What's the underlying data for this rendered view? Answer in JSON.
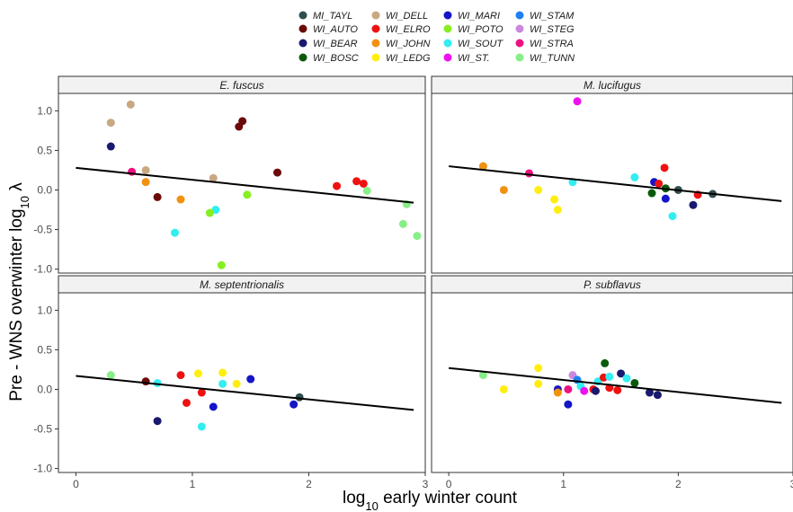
{
  "chart_data": {
    "type": "scatter",
    "xlabel": "log10 early winter count",
    "ylabel": "Pre - WNS overwinter log10 λ",
    "xlim": [
      -0.15,
      3.0
    ],
    "ylim": [
      -1.05,
      1.22
    ],
    "x_ticks": [
      0,
      1,
      2,
      3
    ],
    "y_ticks": [
      -1.0,
      -0.5,
      0.0,
      0.5,
      1.0
    ],
    "x_tick_labels": [
      "0",
      "1",
      "2",
      "3"
    ],
    "y_tick_labels": [
      "-1.0",
      "-0.5",
      "0.0",
      "0.5",
      "1.0"
    ],
    "grid": false,
    "legend_position": "top",
    "legend": [
      {
        "name": "MI_TAYL",
        "color": "#2f4f4f"
      },
      {
        "name": "WI_AUTO",
        "color": "#6b0a0a"
      },
      {
        "name": "WI_BEAR",
        "color": "#191970"
      },
      {
        "name": "WI_BOSC",
        "color": "#0b5a0b"
      },
      {
        "name": "WI_DELL",
        "color": "#c8a882"
      },
      {
        "name": "WI_ELRO",
        "color": "#ee1111"
      },
      {
        "name": "WI_JOHN",
        "color": "#f29110"
      },
      {
        "name": "WI_LEDG",
        "color": "#ffee10"
      },
      {
        "name": "WI_MARI",
        "color": "#1414c8"
      },
      {
        "name": "WI_POTO",
        "color": "#88ee22"
      },
      {
        "name": "WI_SOUT",
        "color": "#33eef0"
      },
      {
        "name": "WI_ST.",
        "color": "#ee11ee"
      },
      {
        "name": "WI_STAM",
        "color": "#1e80ee"
      },
      {
        "name": "WI_STEG",
        "color": "#cc88dd"
      },
      {
        "name": "WI_STRA",
        "color": "#ee1180"
      },
      {
        "name": "WI_TUNN",
        "color": "#88ee88"
      }
    ],
    "panels": [
      {
        "title": "E. fuscus",
        "fit_line": [
          [
            0,
            0.28
          ],
          [
            2.9,
            -0.16
          ]
        ],
        "points": [
          {
            "x": 0.3,
            "y": 0.85,
            "site": "WI_DELL"
          },
          {
            "x": 0.47,
            "y": 1.08,
            "site": "WI_DELL"
          },
          {
            "x": 0.3,
            "y": 0.55,
            "site": "WI_BEAR"
          },
          {
            "x": 0.6,
            "y": 0.25,
            "site": "WI_DELL"
          },
          {
            "x": 0.48,
            "y": 0.23,
            "site": "WI_STRA"
          },
          {
            "x": 0.6,
            "y": 0.1,
            "site": "WI_JOHN"
          },
          {
            "x": 0.7,
            "y": -0.09,
            "site": "WI_AUTO"
          },
          {
            "x": 0.9,
            "y": -0.12,
            "site": "WI_JOHN"
          },
          {
            "x": 0.85,
            "y": -0.54,
            "site": "WI_SOUT"
          },
          {
            "x": 1.2,
            "y": -0.25,
            "site": "WI_SOUT"
          },
          {
            "x": 1.15,
            "y": -0.29,
            "site": "WI_POTO"
          },
          {
            "x": 1.18,
            "y": 0.15,
            "site": "WI_DELL"
          },
          {
            "x": 1.4,
            "y": 0.8,
            "site": "WI_AUTO"
          },
          {
            "x": 1.43,
            "y": 0.87,
            "site": "WI_AUTO"
          },
          {
            "x": 1.47,
            "y": -0.06,
            "site": "WI_POTO"
          },
          {
            "x": 1.25,
            "y": -0.95,
            "site": "WI_POTO"
          },
          {
            "x": 1.73,
            "y": 0.22,
            "site": "WI_AUTO"
          },
          {
            "x": 2.24,
            "y": 0.05,
            "site": "WI_ELRO"
          },
          {
            "x": 2.41,
            "y": 0.11,
            "site": "WI_ELRO"
          },
          {
            "x": 2.47,
            "y": 0.08,
            "site": "WI_ELRO"
          },
          {
            "x": 2.5,
            "y": -0.01,
            "site": "WI_TUNN"
          },
          {
            "x": 2.84,
            "y": -0.18,
            "site": "WI_TUNN"
          },
          {
            "x": 2.81,
            "y": -0.43,
            "site": "WI_TUNN"
          },
          {
            "x": 2.93,
            "y": -0.58,
            "site": "WI_TUNN"
          }
        ]
      },
      {
        "title": "M. lucifugus",
        "fit_line": [
          [
            0,
            0.3
          ],
          [
            2.9,
            -0.14
          ]
        ],
        "points": [
          {
            "x": 0.3,
            "y": 0.3,
            "site": "WI_JOHN"
          },
          {
            "x": 0.48,
            "y": 0.0,
            "site": "WI_JOHN"
          },
          {
            "x": 0.7,
            "y": 0.21,
            "site": "WI_STRA"
          },
          {
            "x": 0.78,
            "y": 0.0,
            "site": "WI_LEDG"
          },
          {
            "x": 0.92,
            "y": -0.12,
            "site": "WI_LEDG"
          },
          {
            "x": 0.95,
            "y": -0.25,
            "site": "WI_LEDG"
          },
          {
            "x": 1.08,
            "y": 0.1,
            "site": "WI_SOUT"
          },
          {
            "x": 1.12,
            "y": 1.12,
            "site": "WI_ST."
          },
          {
            "x": 1.62,
            "y": 0.16,
            "site": "WI_SOUT"
          },
          {
            "x": 1.77,
            "y": -0.04,
            "site": "WI_BOSC"
          },
          {
            "x": 1.79,
            "y": 0.1,
            "site": "WI_MARI"
          },
          {
            "x": 1.83,
            "y": 0.08,
            "site": "WI_ELRO"
          },
          {
            "x": 1.88,
            "y": 0.28,
            "site": "WI_ELRO"
          },
          {
            "x": 1.89,
            "y": 0.02,
            "site": "WI_BOSC"
          },
          {
            "x": 1.89,
            "y": -0.11,
            "site": "WI_MARI"
          },
          {
            "x": 1.95,
            "y": -0.33,
            "site": "WI_SOUT"
          },
          {
            "x": 2.0,
            "y": 0.0,
            "site": "MI_TAYL"
          },
          {
            "x": 2.13,
            "y": -0.19,
            "site": "WI_BEAR"
          },
          {
            "x": 2.17,
            "y": -0.06,
            "site": "WI_ELRO"
          },
          {
            "x": 2.3,
            "y": -0.05,
            "site": "MI_TAYL"
          }
        ]
      },
      {
        "title": "M. septentrionalis",
        "fit_line": [
          [
            0,
            0.17
          ],
          [
            2.9,
            -0.26
          ]
        ],
        "points": [
          {
            "x": 0.3,
            "y": 0.18,
            "site": "WI_TUNN"
          },
          {
            "x": 0.6,
            "y": 0.1,
            "site": "WI_AUTO"
          },
          {
            "x": 0.7,
            "y": 0.08,
            "site": "WI_SOUT"
          },
          {
            "x": 0.7,
            "y": -0.4,
            "site": "WI_BEAR"
          },
          {
            "x": 0.9,
            "y": 0.18,
            "site": "WI_ELRO"
          },
          {
            "x": 0.95,
            "y": -0.17,
            "site": "WI_ELRO"
          },
          {
            "x": 1.05,
            "y": 0.2,
            "site": "WI_LEDG"
          },
          {
            "x": 1.08,
            "y": -0.04,
            "site": "WI_ELRO"
          },
          {
            "x": 1.08,
            "y": -0.47,
            "site": "WI_SOUT"
          },
          {
            "x": 1.18,
            "y": -0.22,
            "site": "WI_MARI"
          },
          {
            "x": 1.26,
            "y": 0.21,
            "site": "WI_LEDG"
          },
          {
            "x": 1.26,
            "y": 0.07,
            "site": "WI_SOUT"
          },
          {
            "x": 1.38,
            "y": 0.07,
            "site": "WI_LEDG"
          },
          {
            "x": 1.5,
            "y": 0.13,
            "site": "WI_MARI"
          },
          {
            "x": 1.87,
            "y": -0.19,
            "site": "WI_MARI"
          },
          {
            "x": 1.92,
            "y": -0.1,
            "site": "MI_TAYL"
          }
        ]
      },
      {
        "title": "P. subflavus",
        "fit_line": [
          [
            0,
            0.27
          ],
          [
            2.9,
            -0.17
          ]
        ],
        "points": [
          {
            "x": 0.3,
            "y": 0.18,
            "site": "WI_TUNN"
          },
          {
            "x": 0.48,
            "y": 0.0,
            "site": "WI_LEDG"
          },
          {
            "x": 0.78,
            "y": 0.27,
            "site": "WI_LEDG"
          },
          {
            "x": 0.78,
            "y": 0.07,
            "site": "WI_LEDG"
          },
          {
            "x": 0.95,
            "y": 0.0,
            "site": "WI_MARI"
          },
          {
            "x": 0.95,
            "y": -0.04,
            "site": "WI_JOHN"
          },
          {
            "x": 1.04,
            "y": -0.19,
            "site": "WI_MARI"
          },
          {
            "x": 1.04,
            "y": 0.0,
            "site": "WI_STRA"
          },
          {
            "x": 1.08,
            "y": 0.18,
            "site": "WI_STEG"
          },
          {
            "x": 1.12,
            "y": 0.12,
            "site": "WI_STAM"
          },
          {
            "x": 1.15,
            "y": 0.04,
            "site": "WI_SOUT"
          },
          {
            "x": 1.18,
            "y": -0.02,
            "site": "WI_ST."
          },
          {
            "x": 1.26,
            "y": 0.0,
            "site": "WI_ELRO"
          },
          {
            "x": 1.28,
            "y": -0.02,
            "site": "WI_BEAR"
          },
          {
            "x": 1.3,
            "y": 0.1,
            "site": "WI_SOUT"
          },
          {
            "x": 1.35,
            "y": 0.15,
            "site": "WI_ELRO"
          },
          {
            "x": 1.36,
            "y": 0.33,
            "site": "WI_BOSC"
          },
          {
            "x": 1.4,
            "y": 0.16,
            "site": "WI_SOUT"
          },
          {
            "x": 1.4,
            "y": 0.02,
            "site": "WI_ELRO"
          },
          {
            "x": 1.47,
            "y": -0.01,
            "site": "WI_ELRO"
          },
          {
            "x": 1.5,
            "y": 0.2,
            "site": "WI_BEAR"
          },
          {
            "x": 1.55,
            "y": 0.14,
            "site": "WI_SOUT"
          },
          {
            "x": 1.62,
            "y": 0.08,
            "site": "WI_BOSC"
          },
          {
            "x": 1.75,
            "y": -0.04,
            "site": "WI_BEAR"
          },
          {
            "x": 1.82,
            "y": -0.07,
            "site": "WI_BEAR"
          }
        ]
      }
    ]
  }
}
